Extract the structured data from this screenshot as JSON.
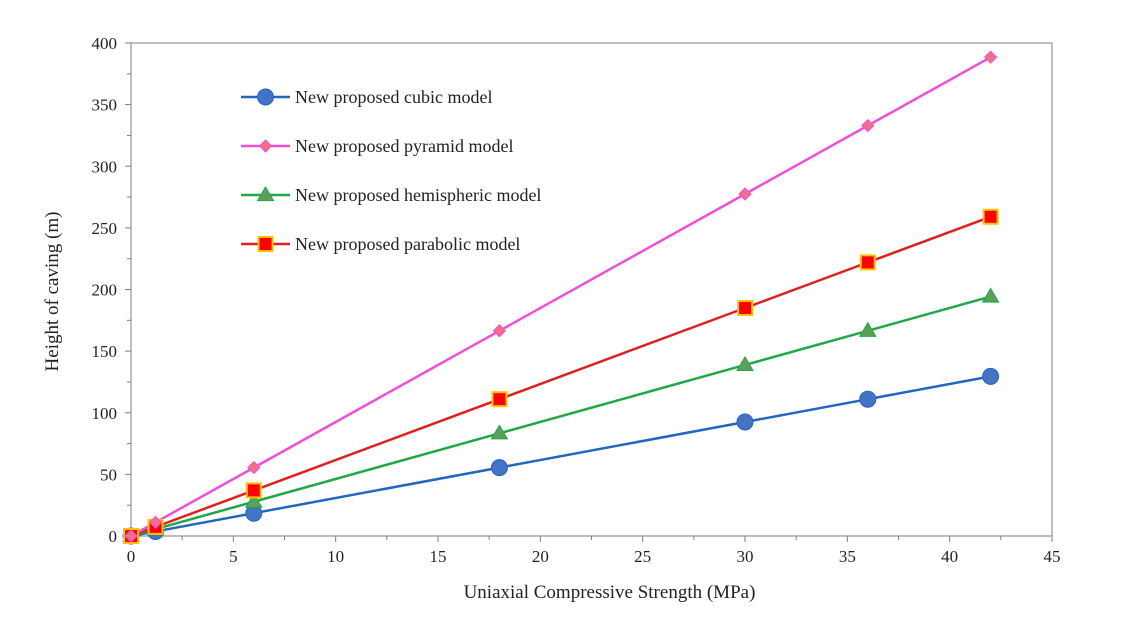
{
  "chart_data": {
    "type": "line",
    "title": "",
    "xlabel": "Uniaxial  Compressive Strength  (MPa)",
    "ylabel": "Height of caving (m)",
    "xlim": [
      0,
      45
    ],
    "ylim": [
      0,
      400
    ],
    "xticks": [
      0,
      5,
      10,
      15,
      20,
      25,
      30,
      35,
      40,
      45
    ],
    "yticks": [
      0,
      50,
      100,
      150,
      200,
      250,
      300,
      350,
      400
    ],
    "grid": false,
    "legend_position": "top-left",
    "x": [
      0,
      1.2,
      6,
      18,
      30,
      36,
      42
    ],
    "series": [
      {
        "name": "New proposed cubic model",
        "color": "#2166c0",
        "marker": "circle",
        "marker_fill": "#4472c4",
        "values": [
          0,
          3.7,
          18.5,
          55.5,
          92.5,
          111,
          129.5
        ]
      },
      {
        "name": "New proposed pyramid model",
        "color": "#ee4fd8",
        "marker": "diamond",
        "marker_fill": "#f0708a",
        "values": [
          0,
          11.1,
          55.5,
          166.5,
          277.5,
          333,
          388.5
        ]
      },
      {
        "name": "New proposed hemispheric model",
        "color": "#1ea84a",
        "marker": "triangle",
        "marker_fill": "#5c9e5a",
        "values": [
          0,
          5.6,
          27.8,
          83.3,
          138.8,
          166.5,
          194.3
        ]
      },
      {
        "name": "New proposed parabolic model",
        "color": "#e02020",
        "marker": "square",
        "marker_fill": "#ff0000",
        "marker_stroke": "#ffc000",
        "values": [
          0,
          7.4,
          37,
          111,
          185,
          222,
          259
        ]
      }
    ]
  }
}
